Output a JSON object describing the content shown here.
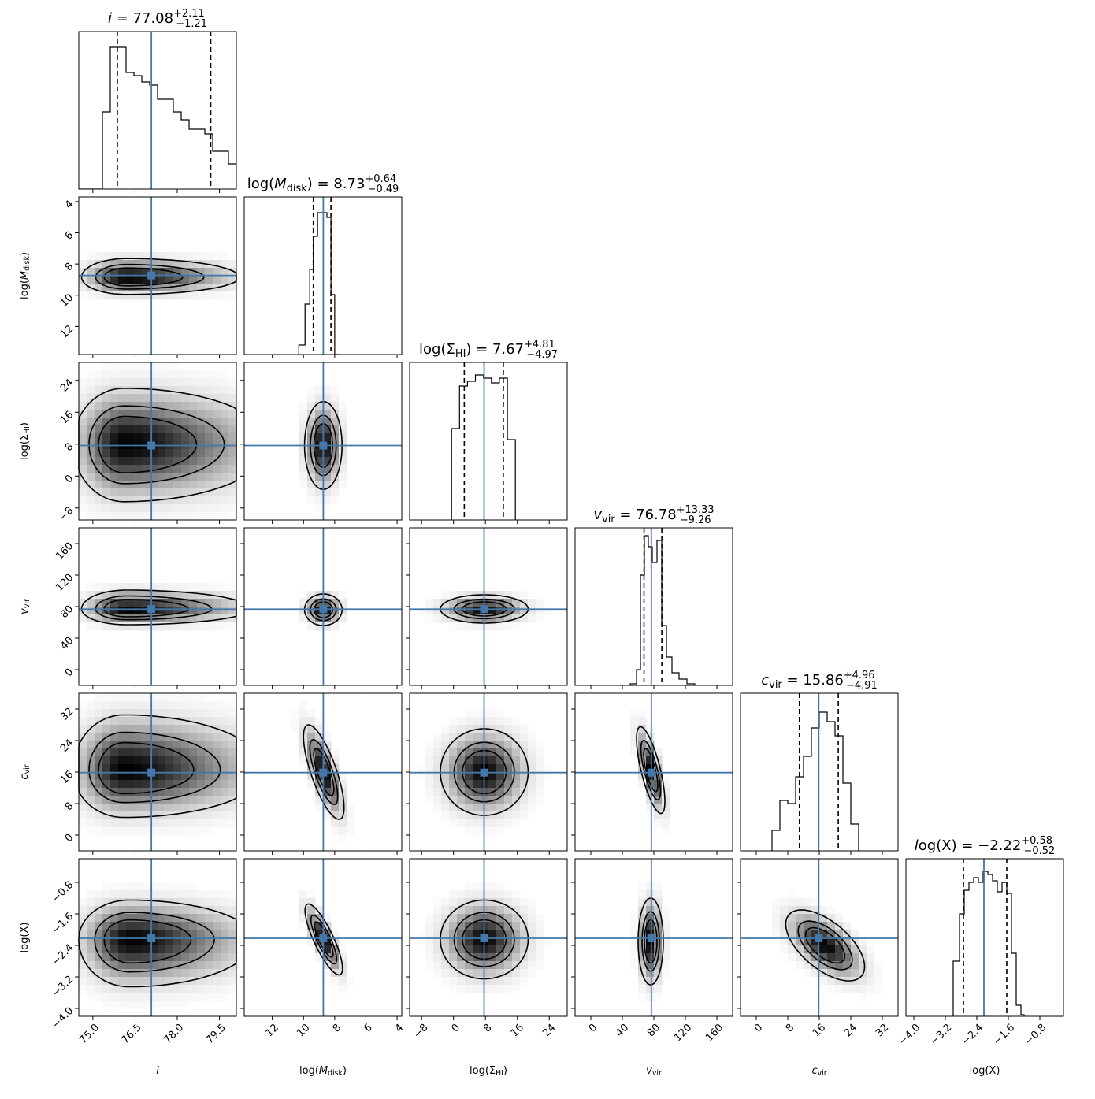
{
  "chart_data": {
    "type": "corner",
    "colors": {
      "truth": "#4477aa",
      "hist": "#000000",
      "density": "#000000"
    },
    "params": [
      {
        "key": "i",
        "axis_label": "i",
        "title": {
          "pre": "i = 77.08",
          "sup": "+2.11",
          "sub": "−1.21"
        },
        "range": [
          74.5,
          80.1
        ],
        "ticks": [
          75.0,
          76.5,
          78.0,
          79.5
        ],
        "tick_labels": [
          "75.0",
          "76.5",
          "78.0",
          "79.5"
        ],
        "reversed": false,
        "truth": 77.08,
        "quantiles": [
          75.87,
          79.19
        ],
        "hist": {
          "edges": [
            74.5,
            74.78,
            75.06,
            75.34,
            75.62,
            75.9,
            76.18,
            76.46,
            76.74,
            77.02,
            77.3,
            77.58,
            77.86,
            78.14,
            78.42,
            78.7,
            78.98,
            79.26,
            79.54,
            79.82,
            80.1
          ],
          "counts": [
            0,
            0,
            0,
            0.49,
            0.9,
            0.9,
            0.74,
            0.72,
            0.68,
            0.66,
            0.57,
            0.57,
            0.49,
            0.44,
            0.38,
            0.38,
            0.35,
            0.24,
            0.24,
            0.16
          ]
        }
      },
      {
        "key": "log_mdisk",
        "axis_label": "log(M_disk)",
        "title": {
          "pre": "log(M_disk) = 8.73",
          "sup": "+0.64",
          "sub": "−0.49"
        },
        "range": [
          13.8,
          3.7
        ],
        "ticks": [
          12,
          10,
          8,
          6,
          4
        ],
        "tick_labels": [
          "12",
          "10",
          "8",
          "6",
          "4"
        ],
        "reversed": true,
        "truth": 8.73,
        "quantiles": [
          9.37,
          8.24
        ],
        "hist": {
          "edges": [
            10.3,
            9.9,
            9.6,
            9.37,
            9.1,
            8.8,
            8.5,
            8.24,
            8.0,
            7.7
          ],
          "counts": [
            0.06,
            0.32,
            0.54,
            0.75,
            0.9,
            0.9,
            0.87,
            0.38,
            0
          ]
        }
      },
      {
        "key": "log_sigma",
        "axis_label": "log(Σ_HI)",
        "title": {
          "pre": "log(Σ_HI) = 7.67",
          "sup": "+4.81",
          "sub": "−4.97"
        },
        "range": [
          -11.0,
          28.5
        ],
        "ticks": [
          -8,
          0,
          8,
          16,
          24
        ],
        "tick_labels": [
          "−8",
          "0",
          "8",
          "16",
          "24"
        ],
        "reversed": false,
        "truth": 7.67,
        "quantiles": [
          2.7,
          12.48
        ],
        "hist": {
          "edges": [
            -0.5,
            1.5,
            3.5,
            5.5,
            7.5,
            9.5,
            11.5,
            13.5,
            15.5
          ],
          "counts": [
            0.58,
            0.85,
            0.88,
            0.92,
            0.9,
            0.87,
            0.9,
            0.51
          ]
        }
      },
      {
        "key": "vvir",
        "axis_label": "v_vir",
        "title": {
          "pre": "v_vir = 76.78",
          "sup": "+13.33",
          "sub": "−9.26"
        },
        "range": [
          -20.0,
          180.0
        ],
        "ticks": [
          0,
          40,
          80,
          120,
          160
        ],
        "tick_labels": [
          "0",
          "40",
          "80",
          "120",
          "160"
        ],
        "reversed": false,
        "truth": 76.78,
        "quantiles": [
          67.52,
          90.11
        ],
        "hist": {
          "edges": [
            50,
            58,
            63,
            68,
            73,
            78,
            84,
            90,
            96,
            103,
            112,
            122,
            132
          ],
          "counts": [
            0.01,
            0.1,
            0.7,
            0.95,
            0.88,
            0.78,
            0.92,
            0.38,
            0.18,
            0.08,
            0.04,
            0.01
          ]
        }
      },
      {
        "key": "cvir",
        "axis_label": "c_vir",
        "title": {
          "pre": "c_vir = 15.86",
          "sup": "+4.96",
          "sub": "−4.91"
        },
        "range": [
          -4.0,
          36.0
        ],
        "ticks": [
          0,
          8,
          16,
          24,
          32
        ],
        "tick_labels": [
          "0",
          "8",
          "16",
          "24",
          "32"
        ],
        "reversed": false,
        "truth": 15.86,
        "quantiles": [
          10.95,
          20.82
        ],
        "hist": {
          "edges": [
            4,
            6,
            8,
            10,
            12,
            14,
            16,
            18,
            20,
            22,
            24,
            26
          ],
          "counts": [
            0.13,
            0.32,
            0.3,
            0.47,
            0.6,
            0.78,
            0.88,
            0.82,
            0.73,
            0.43,
            0.17
          ]
        }
      },
      {
        "key": "log_x",
        "axis_label": "log(X)",
        "title": {
          "pre": "log(X) = −2.22",
          "sup": "+0.58",
          "sub": "−0.52"
        },
        "range": [
          -4.2,
          -0.2
        ],
        "ticks": [
          -4.0,
          -3.2,
          -2.4,
          -1.6,
          -0.8
        ],
        "tick_labels": [
          "−4.0",
          "−3.2",
          "−2.4",
          "−1.6",
          "−0.8"
        ],
        "reversed": false,
        "truth": -2.22,
        "quantiles": [
          -2.74,
          -1.64
        ],
        "hist": {
          "edges": [
            -3.0,
            -2.84,
            -2.72,
            -2.6,
            -2.48,
            -2.36,
            -2.24,
            -2.12,
            -2.0,
            -1.88,
            -1.76,
            -1.64,
            -1.52,
            -1.4,
            -1.28,
            -1.2
          ],
          "counts": [
            0.35,
            0.65,
            0.8,
            0.85,
            0.88,
            0.85,
            0.92,
            0.9,
            0.86,
            0.79,
            0.85,
            0.78,
            0.4,
            0.07,
            0.01
          ]
        }
      }
    ],
    "pairs": [
      {
        "x": "i",
        "y": "log_mdisk",
        "peak": [
          76.2,
          8.85
        ],
        "sx": [
          0.8,
          2.0
        ],
        "sy": [
          0.6,
          0.55
        ],
        "rho": 0
      },
      {
        "x": "i",
        "y": "log_sigma",
        "peak": [
          76.1,
          8.0
        ],
        "sx": [
          0.9,
          2.6
        ],
        "sy": [
          7.2,
          7.0
        ],
        "rho": 0
      },
      {
        "x": "i",
        "y": "vvir",
        "peak": [
          76.2,
          77
        ],
        "sx": [
          0.8,
          2.2
        ],
        "sy": [
          10,
          12
        ],
        "rho": 0
      },
      {
        "x": "i",
        "y": "cvir",
        "peak": [
          76.1,
          16.5
        ],
        "sx": [
          0.9,
          2.5
        ],
        "sy": [
          6.0,
          7.0
        ],
        "rho": 0
      },
      {
        "x": "i",
        "y": "log_x",
        "peak": [
          76.3,
          -2.25
        ],
        "sx": [
          0.9,
          2.2
        ],
        "sy": [
          0.6,
          0.5
        ],
        "rho": 0
      },
      {
        "x": "log_mdisk",
        "y": "log_sigma",
        "peak": [
          8.73,
          7.67
        ],
        "sx": [
          0.6,
          0.6
        ],
        "sy": [
          5.5,
          5.5
        ],
        "rho": 0
      },
      {
        "x": "log_mdisk",
        "y": "vvir",
        "peak": [
          8.73,
          76
        ],
        "sx": [
          0.6,
          0.6
        ],
        "sy": [
          10,
          10
        ],
        "rho": 0
      },
      {
        "x": "log_mdisk",
        "y": "cvir",
        "peak": [
          8.7,
          16
        ],
        "sx": [
          0.65,
          0.65
        ],
        "sy": [
          6.0,
          6.0
        ],
        "rho": 0.75
      },
      {
        "x": "log_mdisk",
        "y": "log_x",
        "peak": [
          8.7,
          -2.25
        ],
        "sx": [
          0.6,
          0.6
        ],
        "sy": [
          0.45,
          0.45
        ],
        "rho": 0.82
      },
      {
        "x": "log_sigma",
        "y": "vvir",
        "peak": [
          7.7,
          77
        ],
        "sx": [
          5.5,
          5.5
        ],
        "sy": [
          9,
          9
        ],
        "rho": 0
      },
      {
        "x": "log_sigma",
        "y": "cvir",
        "peak": [
          7.7,
          16
        ],
        "sx": [
          5.5,
          5.5
        ],
        "sy": [
          5.5,
          5.5
        ],
        "rho": 0
      },
      {
        "x": "log_sigma",
        "y": "log_x",
        "peak": [
          7.7,
          -2.25
        ],
        "sx": [
          5.5,
          5.5
        ],
        "sy": [
          0.5,
          0.5
        ],
        "rho": 0
      },
      {
        "x": "vvir",
        "y": "cvir",
        "peak": [
          76,
          16.5
        ],
        "sx": [
          9,
          9
        ],
        "sy": [
          5.5,
          5.5
        ],
        "rho": -0.72
      },
      {
        "x": "vvir",
        "y": "log_x",
        "peak": [
          76,
          -2.3
        ],
        "sx": [
          8,
          8
        ],
        "sy": [
          0.55,
          0.55
        ],
        "rho": 0
      },
      {
        "x": "cvir",
        "y": "log_x",
        "peak": [
          17.5,
          -2.4
        ],
        "sx": [
          5,
          5
        ],
        "sy": [
          0.45,
          0.45
        ],
        "rho": -0.6
      }
    ]
  }
}
